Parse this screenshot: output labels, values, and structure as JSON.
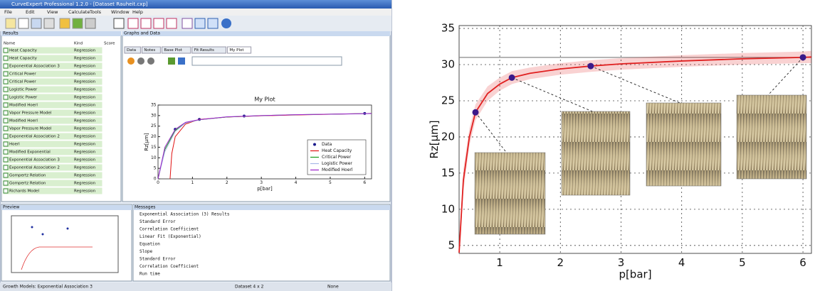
{
  "window": {
    "title": "CurveExpert Professional 1.2.0 - [Dataset Rauheit.cxp]",
    "menu": [
      "File",
      "Edit",
      "View",
      "Calculate",
      "Tools",
      "Window",
      "Help"
    ],
    "panels": {
      "results": "Results",
      "graphs": "Graphs and Data",
      "preview": "Preview",
      "messages": "Messages"
    },
    "tabs": [
      "Data",
      "Notes",
      "Base Plot",
      "Fit Results",
      "My Plot"
    ],
    "results_header": [
      "Name",
      "Kind",
      "Score"
    ],
    "results_rows": [
      [
        "Heat Capacity",
        "Regression"
      ],
      [
        "Heat Capacity",
        "Regression"
      ],
      [
        "Exponential Association 3",
        "Regression"
      ],
      [
        "Critical Power",
        "Regression"
      ],
      [
        "Critical Power",
        "Regression"
      ],
      [
        "Logistic Power",
        "Regression"
      ],
      [
        "Logistic Power",
        "Regression"
      ],
      [
        "Modified Hoerl",
        "Regression"
      ],
      [
        "Vapor Pressure Model",
        "Regression"
      ],
      [
        "Modified Hoerl",
        "Regression"
      ],
      [
        "Vapor Pressure Model",
        "Regression"
      ],
      [
        "Exponential Association 2",
        "Regression"
      ],
      [
        "Hoerl",
        "Regression"
      ],
      [
        "Modified Exponential",
        "Regression"
      ],
      [
        "Exponential Association 3",
        "Regression"
      ],
      [
        "Exponential Association 2",
        "Regression"
      ],
      [
        "Gompertz Relation",
        "Regression"
      ],
      [
        "Gompertz Relation",
        "Regression"
      ],
      [
        "Richards Model",
        "Regression"
      ]
    ],
    "messages": [
      "Exponential Association (3) Results",
      "Standard Error",
      "Correlation Coefficient",
      "Linear Fit (Exponential)",
      "Equation",
      "Slope",
      "Standard Error",
      "Correlation Coefficient",
      "Run time"
    ],
    "status": [
      "Growth Models: Exponential Association 3",
      "Dataset 4 x 2",
      "None"
    ]
  },
  "chart_data": [
    {
      "type": "line",
      "title": "My Plot",
      "x_label": "p[bar]",
      "y_label": "Rz[µm]",
      "xlim": [
        0,
        6.2
      ],
      "ylim": [
        0,
        35
      ],
      "xticks": [
        0,
        1,
        2,
        3,
        4,
        5,
        6
      ],
      "yticks": [
        0,
        5,
        10,
        15,
        20,
        25,
        30,
        35
      ],
      "grid": false,
      "legend": "lower right",
      "series": [
        {
          "name": "Data",
          "color": "#1a1a8c",
          "marker": true,
          "x": [
            0.5,
            1.2,
            2.5,
            6
          ],
          "values": [
            23.5,
            28.2,
            29.8,
            31
          ]
        },
        {
          "name": "Heat Capacity",
          "color": "#e01010",
          "x": [
            0.35,
            0.4,
            0.5,
            0.8,
            1.2,
            2,
            3,
            4,
            6.2
          ],
          "values": [
            0,
            12,
            20,
            26,
            28.2,
            29.3,
            29.9,
            30.3,
            31
          ]
        },
        {
          "name": "Critical Power",
          "color": "#1a9a1a",
          "x": [
            0,
            0.2,
            0.5,
            0.8,
            1.2,
            2,
            3,
            4,
            6.2
          ],
          "values": [
            0,
            14,
            23,
            26.5,
            28,
            29.3,
            30,
            30.4,
            31
          ]
        },
        {
          "name": "Logistic Power",
          "color": "#a8b8e8",
          "x": [
            0,
            0.2,
            0.5,
            0.8,
            1.2,
            2,
            3,
            4,
            6.2
          ],
          "values": [
            0,
            13,
            22.5,
            26.5,
            28,
            29.4,
            30,
            30.4,
            30.9
          ]
        },
        {
          "name": "Modified Hoerl",
          "color": "#9a20c8",
          "x": [
            0,
            0.2,
            0.5,
            0.8,
            1.2,
            2,
            3,
            4,
            6.2
          ],
          "values": [
            0,
            15,
            23.5,
            26.8,
            28.1,
            29.4,
            30,
            30.4,
            31
          ]
        }
      ]
    },
    {
      "type": "line",
      "x_label": "p[bar]",
      "y_label": "Rz[µm]",
      "xlim": [
        0.33,
        6.14
      ],
      "ylim": [
        3.9,
        35.4
      ],
      "xticks": [
        1,
        2,
        3,
        4,
        5,
        6
      ],
      "yticks": [
        5,
        10,
        15,
        20,
        25,
        30,
        35
      ],
      "grid": true,
      "hline": 31,
      "series": [
        {
          "color": "#e02020",
          "x": [
            0.33,
            0.4,
            0.5,
            0.6,
            0.8,
            1,
            1.2,
            1.5,
            2,
            2.5,
            3,
            4,
            5,
            6,
            6.14
          ],
          "values": [
            4,
            14,
            20,
            23.4,
            26,
            27.3,
            28.2,
            28.8,
            29.4,
            29.8,
            30.1,
            30.5,
            30.8,
            31,
            31.05
          ],
          "lower": [
            3,
            12.5,
            18.8,
            22.3,
            25,
            26.4,
            27.3,
            28,
            28.6,
            29,
            29.3,
            29.7,
            30,
            30.2,
            30.2
          ],
          "upper": [
            5,
            15.5,
            21.2,
            24.5,
            27,
            28.2,
            29.1,
            29.6,
            30.2,
            30.6,
            30.9,
            31.3,
            31.6,
            31.8,
            31.9
          ]
        },
        {
          "color": "#3a1a8a",
          "marker": true,
          "x": [
            0.6,
            1.2,
            2.5,
            6
          ],
          "values": [
            23.4,
            28.2,
            29.8,
            31
          ]
        }
      ]
    }
  ]
}
